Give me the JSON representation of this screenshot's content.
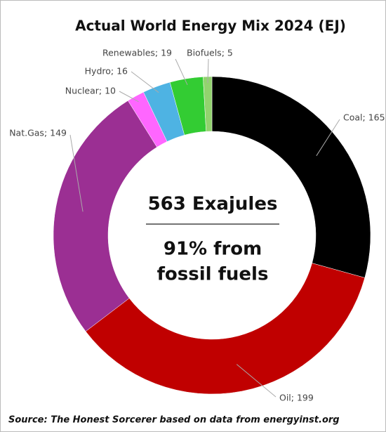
{
  "chart_data": {
    "type": "donut",
    "title": "Actual World Energy Mix 2024 (EJ)",
    "values": [
      165,
      199,
      149,
      10,
      16,
      19,
      5
    ],
    "value_labels": [
      "Coal; 165",
      "Oil; 199",
      "Nat.Gas; 149",
      "Nuclear; 10",
      "Hydro; 16",
      "Renewables; 19",
      "Biofuels; 5"
    ],
    "colors": [
      "#000000",
      "#c00000",
      "#9b2f93",
      "#ff66ff",
      "#4eb3e3",
      "#33cc33",
      "#92d36e"
    ],
    "center_text": [
      "563 Exajules",
      "91% from",
      "fossil fuels"
    ],
    "source": "Source: The Honest Sorcerer based on data from energyinst.org"
  }
}
